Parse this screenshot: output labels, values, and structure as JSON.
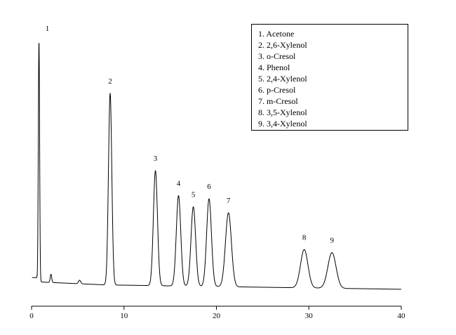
{
  "chart_data": {
    "type": "line",
    "title": "",
    "xlabel": "",
    "ylabel": "",
    "xlim": [
      0,
      40
    ],
    "x_ticks": [
      "0",
      "10",
      "20",
      "30",
      "40"
    ],
    "y_visible": false,
    "grid": false,
    "legend_placement": "top-right",
    "legend": [
      "1. Acetone",
      "2. 2,6-Xylenol",
      "3. o-Cresol",
      "4. Phenol",
      "5. 2,4-Xylenol",
      "6. p-Cresol",
      "7. m-Cresol",
      "8. 3,5-Xylenol",
      "9. 3,4-Xylenol"
    ],
    "series": [
      {
        "peaks": [
          {
            "label": "1",
            "retention_time": 0.8,
            "height": 0.88
          },
          {
            "label": "2",
            "retention_time": 8.5,
            "height": 0.7
          },
          {
            "label": "3",
            "retention_time": 13.4,
            "height": 0.42
          },
          {
            "label": "4",
            "retention_time": 15.9,
            "height": 0.33
          },
          {
            "label": "5",
            "retention_time": 17.5,
            "height": 0.29
          },
          {
            "label": "6",
            "retention_time": 19.2,
            "height": 0.32
          },
          {
            "label": "7",
            "retention_time": 21.3,
            "height": 0.27
          },
          {
            "label": "8",
            "retention_time": 29.5,
            "height": 0.14
          },
          {
            "label": "9",
            "retention_time": 32.5,
            "height": 0.13
          }
        ]
      }
    ]
  }
}
